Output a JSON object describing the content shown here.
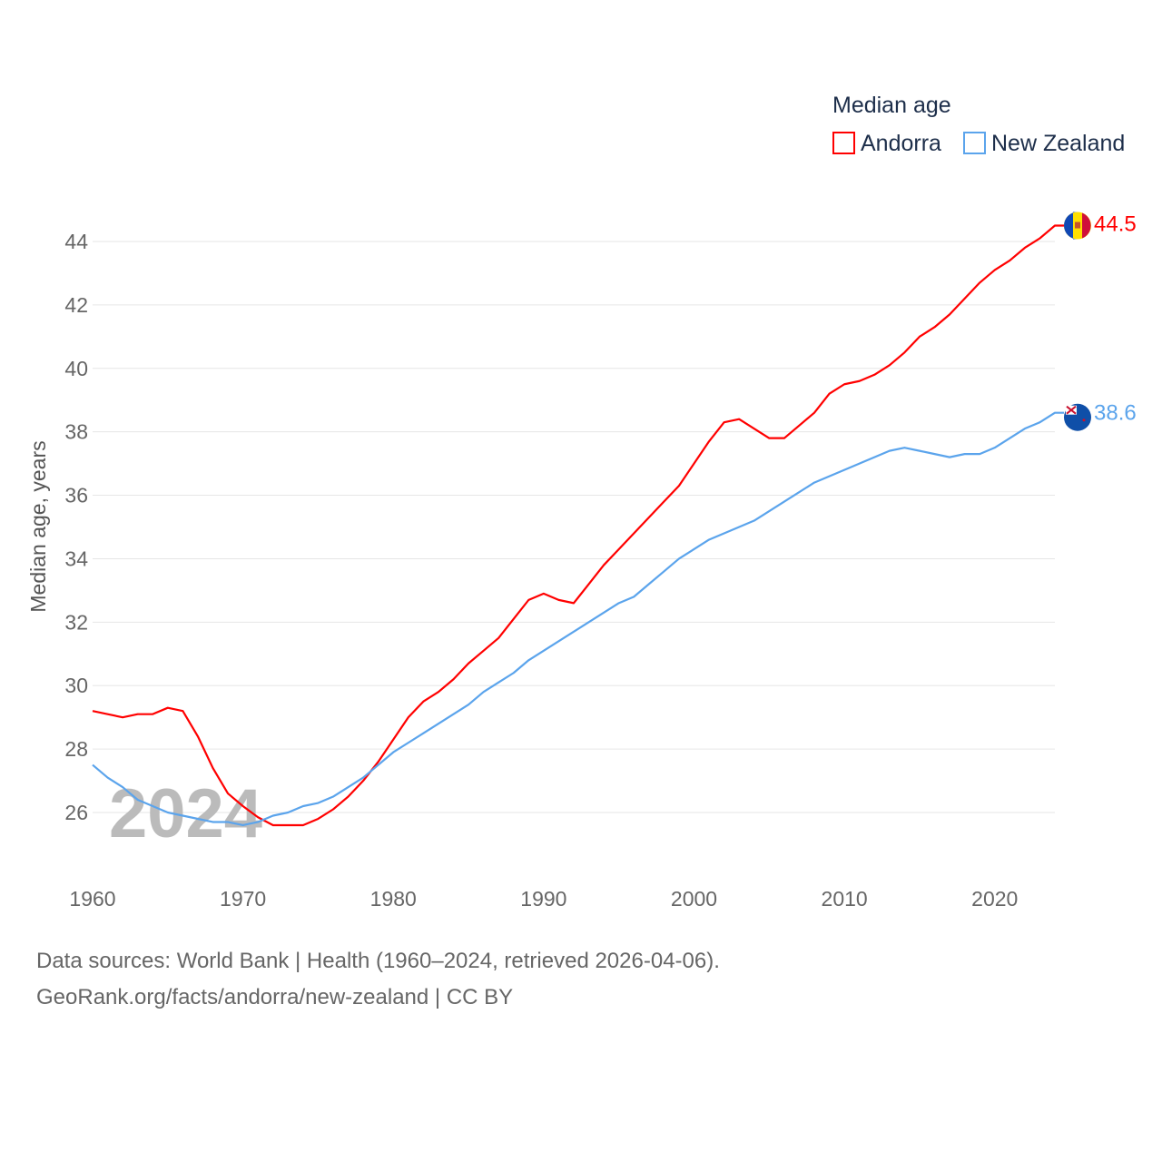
{
  "chart_data": {
    "type": "line",
    "legend_title": "Median age",
    "legend_position": "top-right",
    "ylabel": "Median age, years",
    "xlabel": "",
    "watermark_year": "2024",
    "xlim": [
      1960,
      2024
    ],
    "ylim": [
      24.6,
      45
    ],
    "xticks": [
      "1960",
      "1970",
      "1980",
      "1990",
      "2000",
      "2010",
      "2020"
    ],
    "yticks": [
      "26",
      "28",
      "30",
      "32",
      "34",
      "36",
      "38",
      "40",
      "42",
      "44"
    ],
    "grid": true,
    "x": [
      1960,
      1961,
      1962,
      1963,
      1964,
      1965,
      1966,
      1967,
      1968,
      1969,
      1970,
      1971,
      1972,
      1973,
      1974,
      1975,
      1976,
      1977,
      1978,
      1979,
      1980,
      1981,
      1982,
      1983,
      1984,
      1985,
      1986,
      1987,
      1988,
      1989,
      1990,
      1991,
      1992,
      1993,
      1994,
      1995,
      1996,
      1997,
      1998,
      1999,
      2000,
      2001,
      2002,
      2003,
      2004,
      2005,
      2006,
      2007,
      2008,
      2009,
      2010,
      2011,
      2012,
      2013,
      2014,
      2015,
      2016,
      2017,
      2018,
      2019,
      2020,
      2021,
      2022,
      2023,
      2024
    ],
    "series": [
      {
        "name": "Andorra",
        "color": "#ff0000",
        "end_label": "44.5",
        "values": [
          29.2,
          29.1,
          29.0,
          29.1,
          29.1,
          29.3,
          29.2,
          28.4,
          27.4,
          26.6,
          26.2,
          25.85,
          25.6,
          25.6,
          25.6,
          25.8,
          26.1,
          26.5,
          27.0,
          27.6,
          28.3,
          29.0,
          29.5,
          29.8,
          30.2,
          30.7,
          31.1,
          31.5,
          32.1,
          32.7,
          32.9,
          32.7,
          32.6,
          33.2,
          33.8,
          34.3,
          34.8,
          35.3,
          35.8,
          36.3,
          37.0,
          37.7,
          38.3,
          38.4,
          38.1,
          37.8,
          37.8,
          38.2,
          38.6,
          39.2,
          39.5,
          39.6,
          39.8,
          40.1,
          40.5,
          41.0,
          41.3,
          41.7,
          42.2,
          42.7,
          43.1,
          43.4,
          43.8,
          44.1,
          44.5
        ]
      },
      {
        "name": "New Zealand",
        "color": "#5ba4ec",
        "end_label": "38.6",
        "values": [
          27.5,
          27.1,
          26.8,
          26.4,
          26.2,
          26.0,
          25.9,
          25.8,
          25.7,
          25.7,
          25.6,
          25.7,
          25.9,
          26.0,
          26.2,
          26.3,
          26.5,
          26.8,
          27.1,
          27.5,
          27.9,
          28.2,
          28.5,
          28.8,
          29.1,
          29.4,
          29.8,
          30.1,
          30.4,
          30.8,
          31.1,
          31.4,
          31.7,
          32.0,
          32.3,
          32.6,
          32.8,
          33.2,
          33.6,
          34.0,
          34.3,
          34.6,
          34.8,
          35.0,
          35.2,
          35.5,
          35.8,
          36.1,
          36.4,
          36.6,
          36.8,
          37.0,
          37.2,
          37.4,
          37.5,
          37.4,
          37.3,
          37.2,
          37.3,
          37.3,
          37.5,
          37.8,
          38.1,
          38.3,
          38.6
        ]
      }
    ]
  },
  "footer": {
    "line1": "Data sources: World Bank | Health (1960–2024, retrieved 2026-04-06).",
    "line2": "GeoRank.org/facts/andorra/new-zealand | CC BY"
  }
}
